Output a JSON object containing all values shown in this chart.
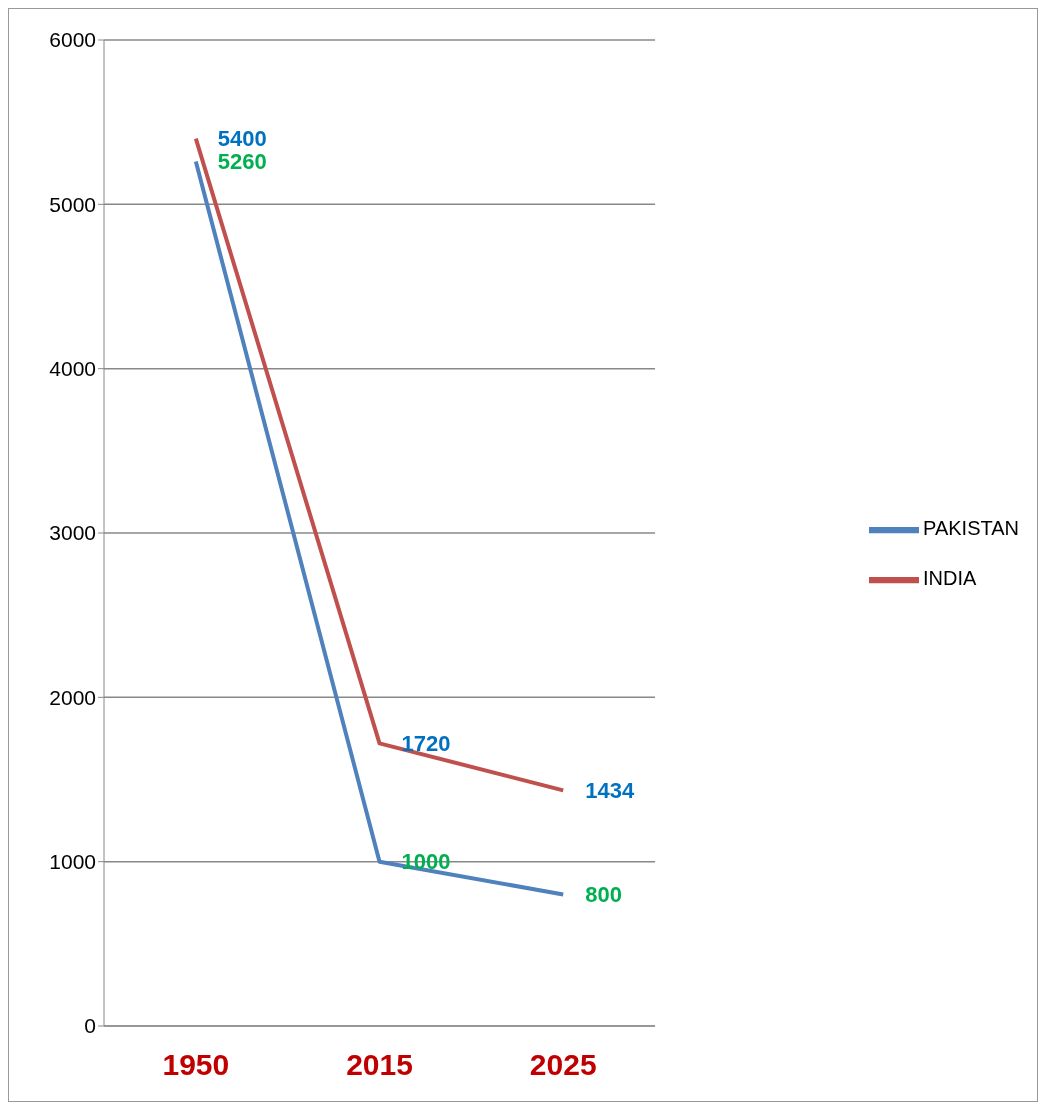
{
  "chart_data": {
    "type": "line",
    "categories": [
      "1950",
      "2015",
      "2025"
    ],
    "series": [
      {
        "name": "PAKISTAN",
        "color": "#4f81bd",
        "values": [
          5260,
          1000,
          800
        ]
      },
      {
        "name": "INDIA",
        "color": "#c0504d",
        "values": [
          5400,
          1720,
          1434
        ]
      }
    ],
    "ylim": [
      0,
      6000
    ],
    "yticks": [
      0,
      1000,
      2000,
      3000,
      4000,
      5000,
      6000
    ],
    "grid": "y",
    "legend": "right",
    "marker": "none",
    "data_labels": true
  }
}
